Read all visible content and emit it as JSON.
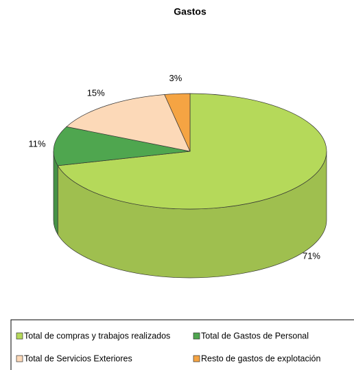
{
  "chart_data": {
    "type": "pie",
    "title": "Gastos",
    "labels": [
      "Total de compras y trabajos realizados",
      "Total de Gastos de Personal",
      "Total de Servicios Exteriores",
      "Resto de gastos de explotación"
    ],
    "values": [
      71,
      11,
      15,
      3
    ],
    "value_labels": [
      "71%",
      "11%",
      "15%",
      "3%"
    ],
    "colors": [
      "#b5d95a",
      "#4fa64f",
      "#fcd9b8",
      "#f5a443"
    ],
    "legend": "bottom"
  }
}
